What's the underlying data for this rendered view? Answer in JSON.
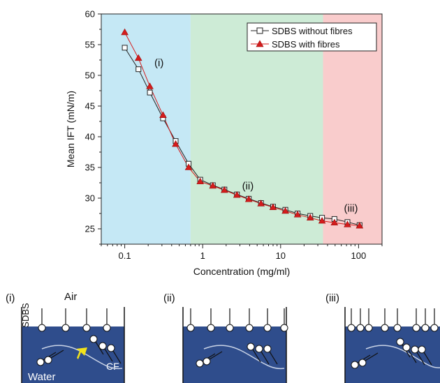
{
  "chart_data": {
    "type": "line",
    "xlabel": "Concentration (mg/ml)",
    "ylabel": "Mean IFT (mN/m)",
    "x_scale": "log",
    "xlim": [
      0.05,
      200
    ],
    "ylim": [
      22.5,
      60
    ],
    "x_ticks": [
      0.1,
      1,
      10,
      100
    ],
    "x_tick_labels": [
      "0.1",
      "1",
      "10",
      "100"
    ],
    "y_ticks": [
      25,
      30,
      35,
      40,
      45,
      50,
      55,
      60
    ],
    "y_tick_labels": [
      "25",
      "30",
      "35",
      "40",
      "45",
      "50",
      "55",
      "60"
    ],
    "legend_position": "top-right",
    "regions": [
      {
        "x_range": [
          0.05,
          0.7
        ],
        "color": "#c5e8f5"
      },
      {
        "x_range": [
          0.7,
          35
        ],
        "color": "#cdebd6"
      },
      {
        "x_range": [
          35,
          200
        ],
        "color": "#f9cccc"
      }
    ],
    "annotations": [
      {
        "text": "(i)",
        "x": 0.24,
        "y": 51.5
      },
      {
        "text": "(ii)",
        "x": 3.2,
        "y": 31.4
      },
      {
        "text": "(iii)",
        "x": 65,
        "y": 27.8
      }
    ],
    "series": [
      {
        "name": "SDBS without fibres",
        "color": "#222222",
        "marker": "open-square",
        "x": [
          0.1,
          0.15,
          0.21,
          0.31,
          0.45,
          0.66,
          0.93,
          1.35,
          1.9,
          2.75,
          3.9,
          5.6,
          8,
          11.5,
          16.5,
          24,
          34,
          49,
          72,
          103
        ],
        "y": [
          54.5,
          51,
          47.2,
          43,
          39.3,
          35.6,
          33.0,
          32.1,
          31.4,
          30.6,
          29.9,
          29.2,
          28.6,
          28.1,
          27.5,
          27.1,
          26.8,
          26.6,
          26.1,
          25.6
        ]
      },
      {
        "name": "SDBS with fibres",
        "color": "#d41c1c",
        "marker": "filled-triangle",
        "x": [
          0.1,
          0.15,
          0.21,
          0.31,
          0.45,
          0.66,
          0.93,
          1.35,
          1.9,
          2.75,
          3.9,
          5.6,
          8,
          11.5,
          16.5,
          24,
          34,
          49,
          72,
          103
        ],
        "y": [
          57,
          52.8,
          48.2,
          43.5,
          38.8,
          35.0,
          32.7,
          32.0,
          31.3,
          30.5,
          29.8,
          29.1,
          28.5,
          27.9,
          27.3,
          26.8,
          26.3,
          26.0,
          25.7,
          25.5
        ]
      }
    ]
  },
  "diagram": {
    "panels": [
      {
        "label": "(i)",
        "air_label": "Air",
        "surfactant_label": "SDBS",
        "water_label": "Water",
        "fibre_label": "CF"
      },
      {
        "label": "(ii)"
      },
      {
        "label": "(iii)"
      }
    ],
    "water_color": "#2f4d8c",
    "arrow_color": "#f2e21a"
  }
}
